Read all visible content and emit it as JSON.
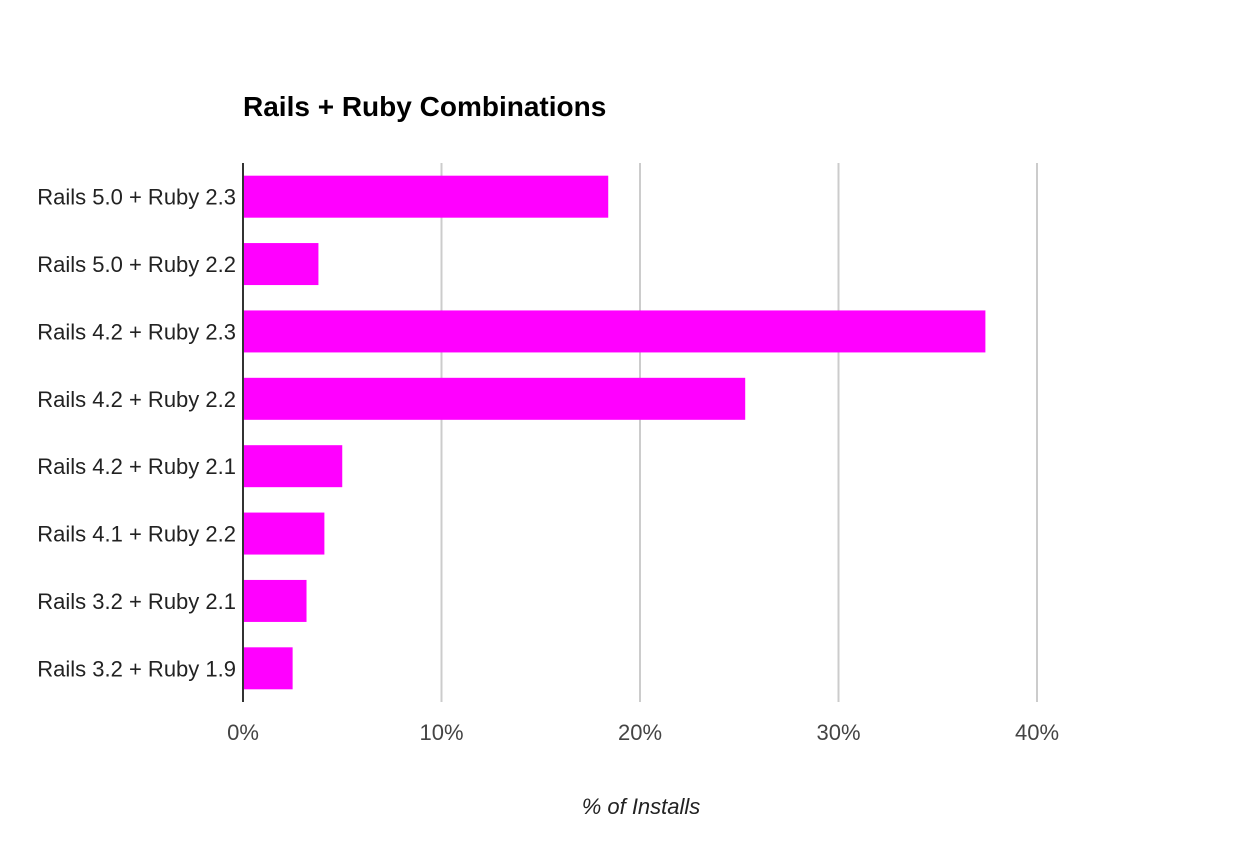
{
  "chart_data": {
    "type": "bar",
    "orientation": "horizontal",
    "title": "Rails + Ruby Combinations",
    "xlabel": "% of Installs",
    "ylabel": "",
    "categories": [
      "Rails 5.0 + Ruby 2.3",
      "Rails 5.0 + Ruby 2.2",
      "Rails 4.2 + Ruby 2.3",
      "Rails 4.2 + Ruby 2.2",
      "Rails 4.2 + Ruby 2.1",
      "Rails 4.1 + Ruby 2.2",
      "Rails 3.2 + Ruby 2.1",
      "Rails 3.2 + Ruby 1.9"
    ],
    "values": [
      18.4,
      3.8,
      37.4,
      25.3,
      5.0,
      4.1,
      3.2,
      2.5
    ],
    "xlim": [
      0,
      40
    ],
    "xticks": [
      0,
      10,
      20,
      30,
      40
    ],
    "xtick_labels": [
      "0%",
      "10%",
      "20%",
      "30%",
      "40%"
    ],
    "grid": "vertical",
    "legend": "none",
    "colors": {
      "bar": "#ff00ff",
      "grid": "#cccccc",
      "axis": "#333333"
    }
  }
}
